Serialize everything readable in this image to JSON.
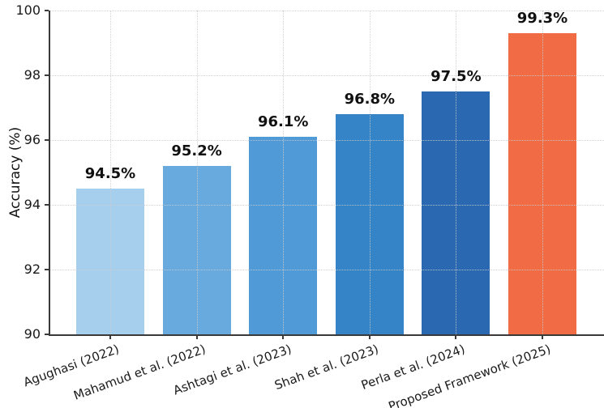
{
  "chart_data": {
    "type": "bar",
    "title": "",
    "xlabel": "",
    "ylabel": "Accuracy (%)",
    "ylim": [
      90,
      100
    ],
    "yticks": [
      90,
      92,
      94,
      96,
      98,
      100
    ],
    "ytick_labels": [
      "90",
      "92",
      "94",
      "96",
      "98",
      "100"
    ],
    "grid": "dotted, horizontal and vertical",
    "legend": "none",
    "categories": [
      "Agughasi (2022)",
      "Mahamud et al. (2022)",
      "Ashtagi et al. (2023)",
      "Shah et al. (2023)",
      "Perla et al. (2024)",
      "Proposed Framework (2025)"
    ],
    "values": [
      94.5,
      95.2,
      96.1,
      96.8,
      97.5,
      99.3
    ],
    "value_labels": [
      "94.5%",
      "95.2%",
      "96.1%",
      "96.8%",
      "97.5%",
      "99.3%"
    ],
    "bar_colors": [
      "#a6cfee",
      "#69aade",
      "#4f9ad7",
      "#3484c7",
      "#2a68b2",
      "#f16c44"
    ]
  },
  "colors": {
    "axis": "#3a3a3a",
    "grid": "#cdcdcd",
    "text": "#111111",
    "background": "#ffffff"
  }
}
